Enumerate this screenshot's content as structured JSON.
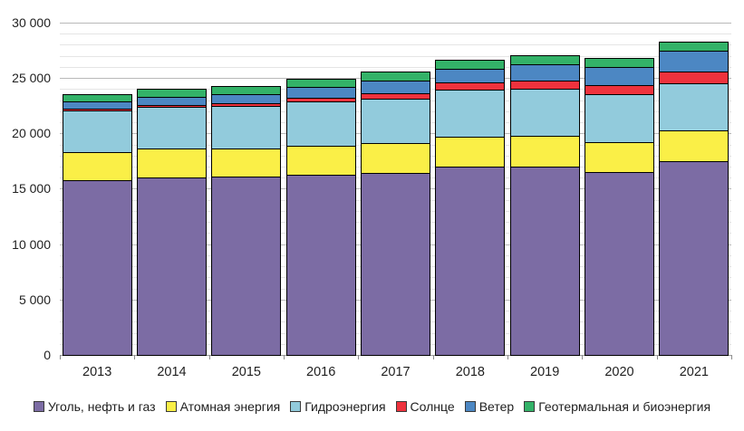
{
  "chart_data": {
    "type": "bar",
    "stacked": true,
    "title": "",
    "xlabel": "",
    "ylabel": "",
    "grid": true,
    "legend_position": "bottom",
    "ylim": [
      0,
      30000
    ],
    "ytick_step": 5000,
    "minor_gridline_step": 1000,
    "ytick_labels": [
      "0",
      "5 000",
      "10 000",
      "15 000",
      "20 000",
      "25 000",
      "30 000"
    ],
    "categories": [
      "2013",
      "2014",
      "2015",
      "2016",
      "2017",
      "2018",
      "2019",
      "2020",
      "2021"
    ],
    "series": [
      {
        "key": "fossil",
        "name": "Уголь, нефть и газ",
        "color": "#7C6CA4",
        "values": [
          15800,
          16060,
          16100,
          16300,
          16470,
          17000,
          17000,
          16500,
          17480
        ]
      },
      {
        "key": "nuclear",
        "name": "Атомная энергия",
        "color": "#FAEF47",
        "values": [
          2490,
          2540,
          2560,
          2610,
          2640,
          2710,
          2790,
          2700,
          2780
        ]
      },
      {
        "key": "hydro",
        "name": "Гидроэнергия",
        "color": "#92CBDC",
        "values": [
          3800,
          3800,
          3850,
          4010,
          4060,
          4240,
          4280,
          4350,
          4270
        ]
      },
      {
        "key": "solar",
        "name": "Солнце",
        "color": "#EE323D",
        "values": [
          180,
          200,
          250,
          330,
          450,
          620,
          720,
          850,
          1040
        ]
      },
      {
        "key": "wind",
        "name": "Ветер",
        "color": "#4C87C3",
        "values": [
          650,
          720,
          790,
          910,
          1140,
          1270,
          1420,
          1590,
          1870
        ]
      },
      {
        "key": "geo-bio",
        "name": "Геотермальная и биоэнергия",
        "color": "#33B268",
        "values": [
          580,
          600,
          610,
          680,
          720,
          740,
          770,
          780,
          800
        ]
      }
    ],
    "totals": [
      23500,
      23920,
      24160,
      24830,
      25480,
      26580,
      26980,
      26770,
      28240
    ]
  }
}
